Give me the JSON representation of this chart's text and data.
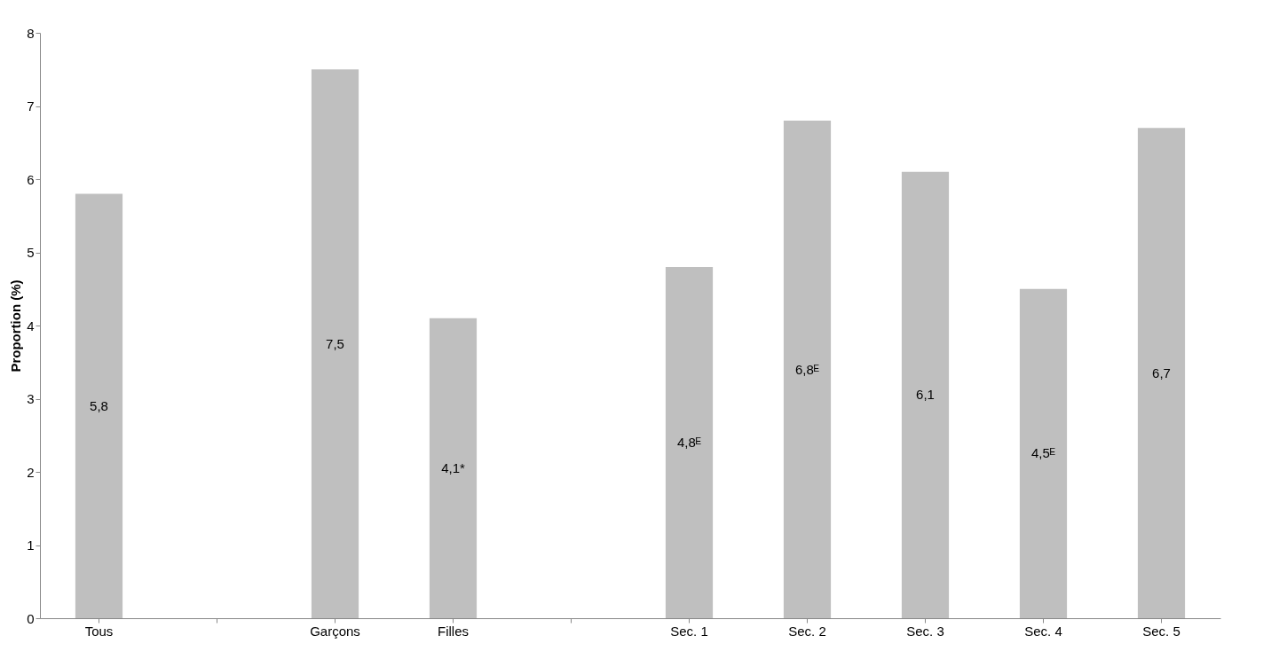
{
  "chart_data": {
    "type": "bar",
    "ylabel": "Proportion (%)",
    "categories": [
      "Tous",
      null,
      "Garçons",
      "Filles",
      null,
      "Sec. 1",
      "Sec. 2",
      "Sec. 3",
      "Sec. 4",
      "Sec. 5"
    ],
    "values": [
      5.8,
      null,
      7.5,
      4.1,
      null,
      4.8,
      6.8,
      6.1,
      4.5,
      6.7
    ],
    "value_labels": [
      "5,8",
      null,
      "7,5",
      "4,1*",
      null,
      "4,8ᴱ",
      "6,8ᴱ",
      "6,1",
      "4,5ᴱ",
      "6,7"
    ],
    "color": "#bfbfbf",
    "ylim": [
      0,
      8
    ],
    "yticks": [
      0,
      1,
      2,
      3,
      4,
      5,
      6,
      7,
      8
    ],
    "grid": false
  }
}
